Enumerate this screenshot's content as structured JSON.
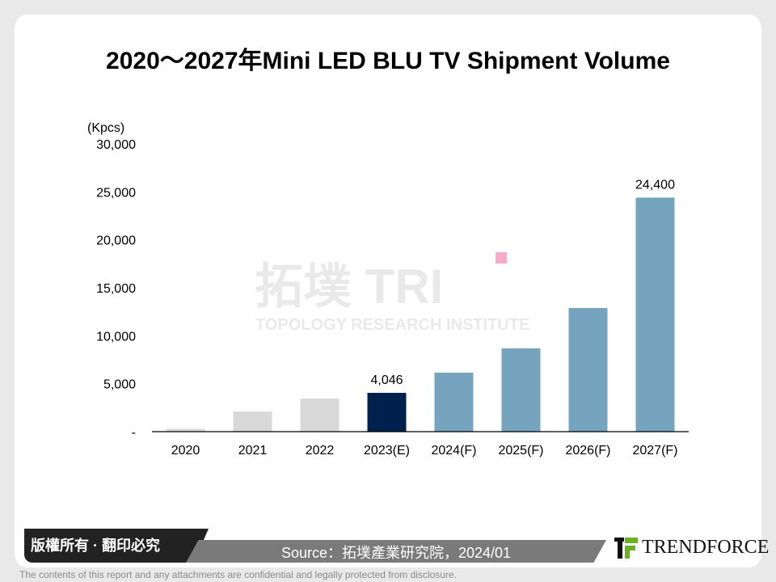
{
  "chart_data": {
    "type": "bar",
    "title": "2020～2027年Mini LED BLU TV Shipment Volume",
    "ylabel": "(Kpcs)",
    "ylim": [
      0,
      30000
    ],
    "yticks": [
      "-",
      "5,000",
      "10,000",
      "15,000",
      "20,000",
      "25,000",
      "30,000"
    ],
    "categories": [
      "2020",
      "2021",
      "2022",
      "2023(E)",
      "2024(F)",
      "2025(F)",
      "2026(F)",
      "2027(F)"
    ],
    "values": [
      300,
      2100,
      3450,
      4046,
      6150,
      8680,
      12890,
      24400
    ],
    "data_labels": {
      "3": "4,046",
      "7": "24,400"
    },
    "colors": [
      "#d9d9d9",
      "#d9d9d9",
      "#d9d9d9",
      "#00204e",
      "#76a3bd",
      "#76a3bd",
      "#76a3bd",
      "#76a3bd"
    ],
    "grid": false,
    "legend": "none"
  },
  "watermark": {
    "text": "拓墣 TRI",
    "subtitle": "TOPOLOGY RESEARCH INSTITUTE"
  },
  "footer": {
    "copyright": "版權所有 · 翻印必究",
    "source": "Source：拓墣產業研究院，2024/01",
    "logo": "TRENDFORCE",
    "disclaimer": "The contents of this report and any attachments are confidential and legally protected from disclosure."
  }
}
